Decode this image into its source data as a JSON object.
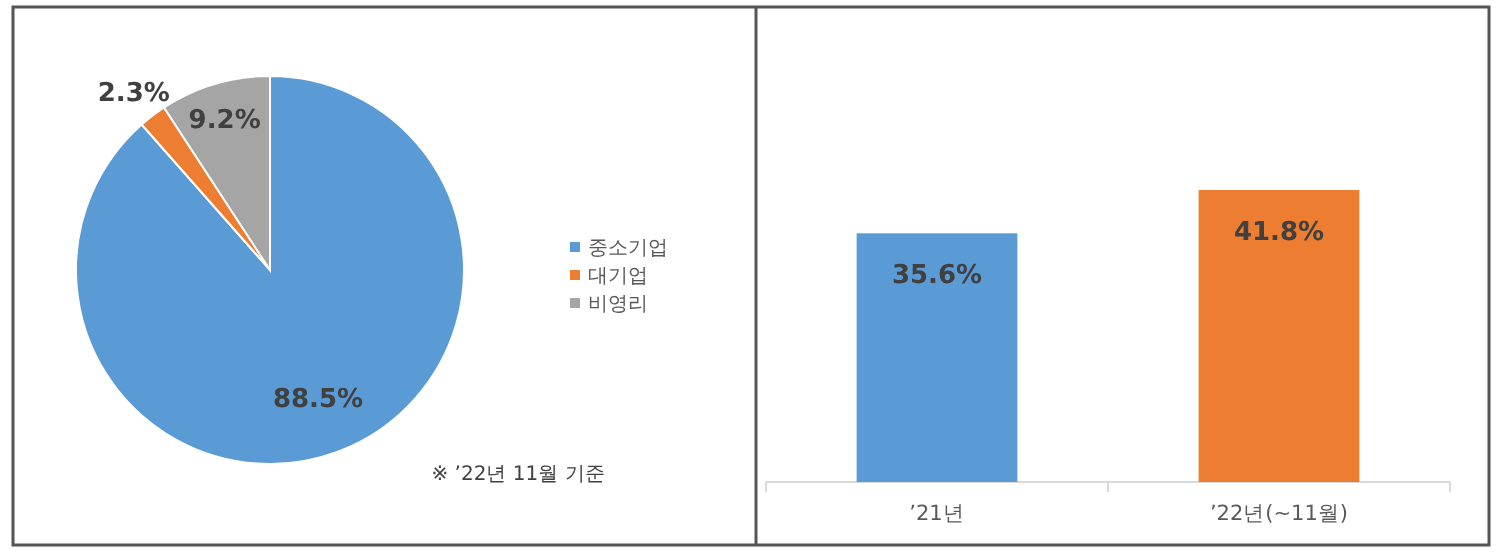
{
  "chart_data": [
    {
      "type": "pie",
      "categories": [
        "중소기업",
        "대기업",
        "비영리"
      ],
      "values": [
        88.5,
        2.3,
        9.2
      ],
      "colors": [
        "#5b9bd5",
        "#ed7d31",
        "#a5a5a5"
      ],
      "value_labels": [
        "88.5%",
        "2.3%",
        "9.2%"
      ],
      "legend": "right",
      "annotations": [
        "※ ’22년 11월 기준"
      ]
    },
    {
      "type": "bar",
      "categories": [
        "’21년",
        "’22년(~11월)"
      ],
      "values": [
        35.6,
        41.8
      ],
      "colors": [
        "#5b9bd5",
        "#ed7d31"
      ],
      "value_labels": [
        "35.6%",
        "41.8%"
      ]
    }
  ]
}
